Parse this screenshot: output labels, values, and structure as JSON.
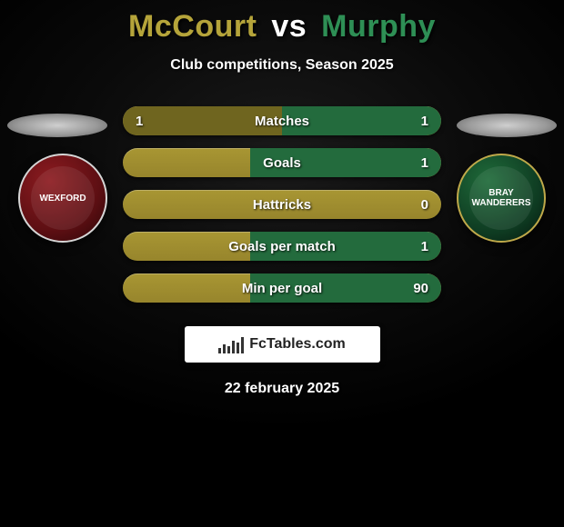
{
  "title": {
    "player1": "McCourt",
    "vs": "vs",
    "player2": "Murphy",
    "p1_color": "#b5a43a",
    "vs_color": "#ffffff",
    "p2_color": "#2e8f55"
  },
  "subtitle": "Club competitions, Season 2025",
  "crest_left_label": "WEXFORD",
  "crest_right_label": "BRAY WANDERERS",
  "stats": {
    "type": "dual-bar-pill",
    "pill_base_color": "#a89633",
    "left_fill_color": "#6f651f",
    "right_fill_color": "#236b3d",
    "text_color": "#ffffff",
    "label_fontsize": 15,
    "rows": [
      {
        "label": "Matches",
        "left_value": "1",
        "right_value": "1",
        "left_pct": 50,
        "right_pct": 50
      },
      {
        "label": "Goals",
        "left_value": "",
        "right_value": "1",
        "left_pct": 0,
        "right_pct": 60
      },
      {
        "label": "Hattricks",
        "left_value": "",
        "right_value": "0",
        "left_pct": 0,
        "right_pct": 0
      },
      {
        "label": "Goals per match",
        "left_value": "",
        "right_value": "1",
        "left_pct": 0,
        "right_pct": 60
      },
      {
        "label": "Min per goal",
        "left_value": "",
        "right_value": "90",
        "left_pct": 0,
        "right_pct": 60
      }
    ]
  },
  "footer_brand": "FcTables.com",
  "date": "22 february 2025",
  "colors": {
    "background": "#000000",
    "disc": "#9a9a9a",
    "crest_left": "#5e0f13",
    "crest_right": "#0e3a21"
  }
}
